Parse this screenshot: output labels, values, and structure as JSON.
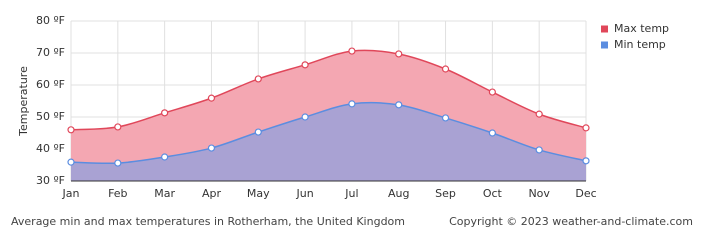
{
  "chart_data": {
    "type": "area-line",
    "categories": [
      "Jan",
      "Feb",
      "Mar",
      "Apr",
      "May",
      "Jun",
      "Jul",
      "Aug",
      "Sep",
      "Oct",
      "Nov",
      "Dec"
    ],
    "series": [
      {
        "name": "Max temp",
        "color": "#e0475a",
        "fill": "#f4a7b2",
        "values": [
          46,
          46.9,
          51.3,
          55.9,
          61.9,
          66.3,
          70.6,
          69.7,
          65,
          57.8,
          50.9,
          46.6
        ]
      },
      {
        "name": "Min temp",
        "color": "#5b8de0",
        "fill": "#a9a2d3",
        "values": [
          35.9,
          35.6,
          37.5,
          40.3,
          45.3,
          50,
          54.1,
          53.8,
          49.7,
          45,
          39.7,
          36.3
        ]
      }
    ],
    "ylabel": "Temperature",
    "ylim": [
      30,
      80
    ],
    "yticks": [
      {
        "value": 30,
        "label": "30 ºF"
      },
      {
        "value": 40,
        "label": "40 ºF"
      },
      {
        "value": 50,
        "label": "50 ºF"
      },
      {
        "value": 60,
        "label": "60 ºF"
      },
      {
        "value": 70,
        "label": "70 ºF"
      },
      {
        "value": 80,
        "label": "80 ºF"
      }
    ],
    "grid": true,
    "legend": "top-right",
    "caption": "Average min and max temperatures in Rotherham, the United Kingdom",
    "copyright": "Copyright © 2023  weather-and-climate.com"
  }
}
